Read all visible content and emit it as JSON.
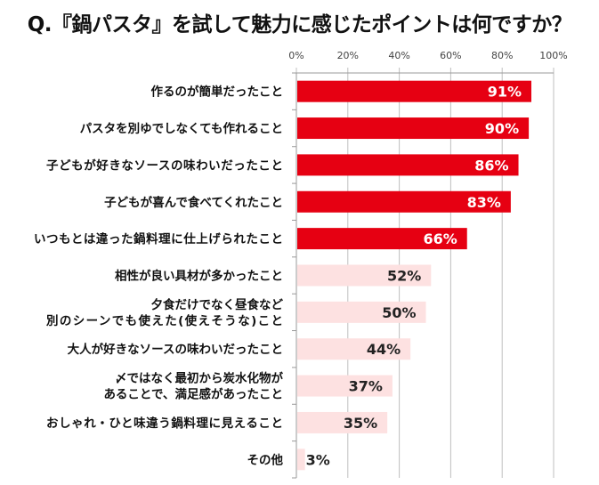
{
  "chart_data": {
    "type": "bar",
    "orientation": "horizontal",
    "title": "Q.『鍋パスタ』を試して魅力に感じたポイントは何ですか？",
    "categories": [
      "作るのが簡単だったこと",
      "パスタを別ゆでしなくても作れること",
      "子どもが好きなソースの味わいだったこと",
      "子どもが喜んで食べてくれたこと",
      "いつもとは違った鍋料理に仕上げられたこと",
      "相性が良い具材が多かったこと",
      "夕食だけでなく昼食など\n別のシーンでも使えた(使えそうな)こと",
      "大人が好きなソースの味わいだったこと",
      "〆ではなく最初から炭水化物が\nあることで、満足感があったこと",
      "おしゃれ・ひと味違う鍋料理に見えること",
      "その他"
    ],
    "values": [
      91,
      90,
      86,
      83,
      66,
      52,
      50,
      44,
      37,
      35,
      3
    ],
    "data_labels": [
      "91%",
      "90%",
      "86%",
      "83%",
      "66%",
      "52%",
      "50%",
      "44%",
      "37%",
      "35%",
      "3%"
    ],
    "highlighted_count": 5,
    "xlim": [
      0,
      100
    ],
    "tick_labels": [
      "0%",
      "20%",
      "40%",
      "60%",
      "80%",
      "100%"
    ],
    "ticks": [
      0,
      20,
      40,
      60,
      80,
      100
    ],
    "grid": true,
    "xaxis_position": "top",
    "colors": {
      "highlight": "#e60012",
      "normal": "#fde1e1",
      "grid": "#bfbfbf"
    }
  }
}
